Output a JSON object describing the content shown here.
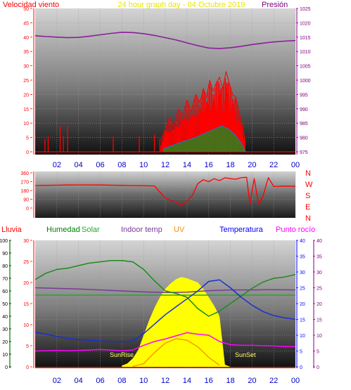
{
  "header": {
    "left_label": "Velocidad viento",
    "center_label": "24 hour graph day - 04 Octubre 2019",
    "right_label": "Presión"
  },
  "legend": {
    "lluvia": "Lluvia",
    "humedad": "Humedad",
    "solar": "Solar",
    "indoor": "Indoor temp",
    "uv": "UV",
    "temperatura": "Temperatura",
    "punto_rocio": "Punto rocío"
  },
  "direction_letters": [
    "N",
    "W",
    "S",
    "E",
    "N"
  ],
  "sun_labels": {
    "rise": "SunRise",
    "set": "SunSet"
  },
  "colors": {
    "wind": "#ff0000",
    "gust_inner": "#2a6fb0",
    "gust_low": "#1e8a1e",
    "pressure": "#8b1f9a",
    "direction": "#ff0000",
    "humidity": "#1e8a1e",
    "solar_line": "#2aa52a",
    "solar_fill": "#ffff00",
    "indoor": "#7a3a9a",
    "uv": "#ff8c00",
    "temperature": "#1a2fd6",
    "dewpoint": "#ff00ff",
    "rain": "#ff3300",
    "axis_red": "#ff0000",
    "axis_purple": "#800080",
    "axis_blue": "#0000ff",
    "axis_green": "#008000",
    "hour_labels": "#0000cc"
  },
  "chart_data": [
    {
      "type": "line",
      "name": "wind-pressure",
      "x_ticks": [
        "02",
        "04",
        "06",
        "08",
        "10",
        "12",
        "14",
        "16",
        "18",
        "20",
        "22",
        "00"
      ],
      "y_left_ticks": [
        "0",
        "5",
        "10",
        "15",
        "20",
        "25",
        "30",
        "35",
        "40",
        "45",
        "50"
      ],
      "y_left_range": [
        0,
        50
      ],
      "y_right_ticks": [
        "975",
        "980",
        "985",
        "990",
        "995",
        "1000",
        "1005",
        "1010",
        "1015",
        "1020",
        "1025"
      ],
      "y_right_range": [
        975,
        1025
      ],
      "pressure": {
        "x": [
          0,
          1,
          2,
          3,
          4,
          5,
          6,
          7,
          8,
          9,
          10,
          11,
          12,
          13,
          14,
          15,
          16,
          17,
          18,
          19,
          20,
          21,
          22,
          23,
          24
        ],
        "y": [
          1015.5,
          1015.2,
          1015.0,
          1014.8,
          1014.9,
          1015.3,
          1015.8,
          1016.3,
          1016.7,
          1016.6,
          1016.2,
          1015.6,
          1014.8,
          1014.0,
          1013.0,
          1012.0,
          1011.2,
          1011.0,
          1011.3,
          1011.8,
          1012.4,
          1012.9,
          1013.3,
          1013.6,
          1013.8
        ]
      },
      "wind_bursts": [
        {
          "x": 0.9,
          "y": 4.5
        },
        {
          "x": 1.2,
          "y": 5.5
        },
        {
          "x": 2.3,
          "y": 9
        },
        {
          "x": 2.6,
          "y": 5.5
        },
        {
          "x": 3.0,
          "y": 9
        },
        {
          "x": 7.2,
          "y": 5.5
        },
        {
          "x": 9.6,
          "y": 5.5
        },
        {
          "x": 11.0,
          "y": 6
        },
        {
          "x": 11.5,
          "y": 4.5
        }
      ],
      "wind_gust": {
        "x": [
          11.6,
          12.0,
          12.4,
          12.8,
          13.2,
          13.6,
          14.0,
          14.4,
          14.8,
          15.2,
          15.5,
          15.8,
          16.1,
          16.4,
          16.7,
          17.0,
          17.3,
          17.6,
          17.9,
          18.2,
          18.5,
          18.8,
          19.1,
          19.4
        ],
        "y": [
          4,
          8,
          12,
          9,
          15,
          13,
          18,
          14,
          20,
          17,
          22,
          19,
          25,
          21,
          24,
          26,
          22,
          28,
          24,
          20,
          19,
          14,
          9,
          3
        ]
      },
      "wind_avg": {
        "x": [
          11.8,
          12.5,
          13.2,
          14.0,
          14.8,
          15.4,
          16.0,
          16.6,
          17.2,
          17.8,
          18.4,
          19.0,
          19.4
        ],
        "y": [
          1,
          2,
          3,
          4,
          5,
          6,
          7,
          8,
          9,
          8,
          6,
          3,
          0
        ]
      }
    },
    {
      "type": "line",
      "name": "wind-direction",
      "y_ticks": [
        "0",
        "90",
        "180",
        "270",
        "360"
      ],
      "y_range": [
        0,
        360
      ],
      "direction": {
        "x": [
          0,
          1,
          2,
          3,
          4,
          5,
          6,
          7,
          8,
          9,
          10,
          11,
          12,
          12.5,
          13,
          13.5,
          14,
          14.5,
          15,
          15.5,
          16,
          16.5,
          17,
          17.5,
          18,
          18.5,
          19,
          19.5,
          19.8,
          20.2,
          20.6,
          21,
          21.5,
          22,
          23,
          24
        ],
        "y": [
          230,
          232,
          234,
          236,
          237,
          237,
          236,
          234,
          232,
          230,
          228,
          226,
          100,
          80,
          60,
          30,
          70,
          130,
          250,
          290,
          270,
          300,
          280,
          310,
          300,
          295,
          310,
          315,
          40,
          300,
          40,
          120,
          310,
          220,
          225,
          222
        ]
      }
    },
    {
      "type": "line",
      "name": "temp-humidity-solar",
      "y_left_ticks": [
        "0",
        "5",
        "10",
        "15",
        "20",
        "25",
        "30"
      ],
      "y_left_range": [
        0,
        30
      ],
      "y_humidity_ticks": [
        "0",
        "10",
        "20",
        "30",
        "40",
        "50",
        "60",
        "70",
        "80",
        "90",
        "100"
      ],
      "y_humidity_range": [
        0,
        100
      ],
      "y_right_ticks": [
        "0",
        "5",
        "10",
        "15",
        "20",
        "25",
        "30",
        "35",
        "40"
      ],
      "y_right_range": [
        0,
        40
      ],
      "humidity": {
        "x": [
          0,
          1,
          2,
          3,
          4,
          5,
          6,
          7,
          8,
          9,
          10,
          11,
          12,
          13,
          14,
          15,
          16,
          17,
          18,
          19,
          20,
          21,
          22,
          23,
          24
        ],
        "y": [
          69,
          74,
          77,
          78,
          80,
          82,
          83,
          84,
          84,
          83,
          77,
          68,
          60,
          58,
          55,
          46,
          40,
          44,
          50,
          56,
          62,
          67,
          70,
          71,
          73
        ]
      },
      "temperature": {
        "x": [
          0,
          1,
          2,
          3,
          4,
          5,
          6,
          7,
          8,
          9,
          10,
          11,
          12,
          13,
          14,
          15,
          16,
          17,
          18,
          19,
          20,
          21,
          22,
          23,
          24
        ],
        "y": [
          11.0,
          10.3,
          9.6,
          9.0,
          8.6,
          8.4,
          8.2,
          8.0,
          7.9,
          8.2,
          10.5,
          13.5,
          16.5,
          19.0,
          21.5,
          24.0,
          27.0,
          27.5,
          25.0,
          22.0,
          19.5,
          17.5,
          16.2,
          15.5,
          15.0
        ]
      },
      "indoor_temp": {
        "x": [
          0,
          2,
          4,
          6,
          8,
          10,
          12,
          14,
          16,
          18,
          20,
          22,
          24
        ],
        "y": [
          25.0,
          24.8,
          24.6,
          24.3,
          24.0,
          23.7,
          23.5,
          23.6,
          24.1,
          24.3,
          24.3,
          24.4,
          24.3
        ]
      },
      "dewpoint": {
        "x": [
          0,
          1,
          2,
          3,
          4,
          5,
          6,
          7,
          8,
          9,
          10,
          11,
          12,
          13,
          14,
          15,
          16,
          17,
          18,
          19,
          20,
          21,
          22,
          23,
          24
        ],
        "y": [
          5.0,
          5.1,
          5.2,
          5.1,
          5.2,
          5.3,
          5.5,
          5.3,
          5.1,
          5.3,
          6.8,
          8.0,
          8.8,
          9.8,
          10.8,
          10.3,
          10.0,
          8.0,
          7.0,
          6.8,
          6.8,
          6.7,
          6.6,
          6.4,
          6.4
        ]
      },
      "rain_humid_flat": {
        "x": [
          0,
          24
        ],
        "y": [
          17,
          17
        ]
      },
      "solar": {
        "x": [
          8.0,
          8.5,
          9.0,
          9.5,
          10.0,
          10.5,
          11.0,
          11.5,
          12.0,
          12.5,
          13.0,
          13.5,
          14.0,
          14.5,
          15.0,
          15.5,
          16.0,
          16.5,
          17.0,
          17.5,
          18.0
        ],
        "y": [
          0.3,
          0.8,
          2.0,
          4.0,
          7.5,
          11.0,
          14.0,
          16.5,
          18.5,
          19.8,
          20.8,
          21.3,
          21.0,
          20.5,
          20.0,
          18.5,
          16.5,
          14.5,
          12.0,
          0.5,
          0.0
        ]
      },
      "uv": {
        "x": [
          9.0,
          10.0,
          11.0,
          12.0,
          13.0,
          14.0,
          15.0,
          16.0,
          17.0
        ],
        "y": [
          0.1,
          1.0,
          4.5,
          7.5,
          8.9,
          8.4,
          6.3,
          3.0,
          0.5
        ]
      }
    }
  ]
}
